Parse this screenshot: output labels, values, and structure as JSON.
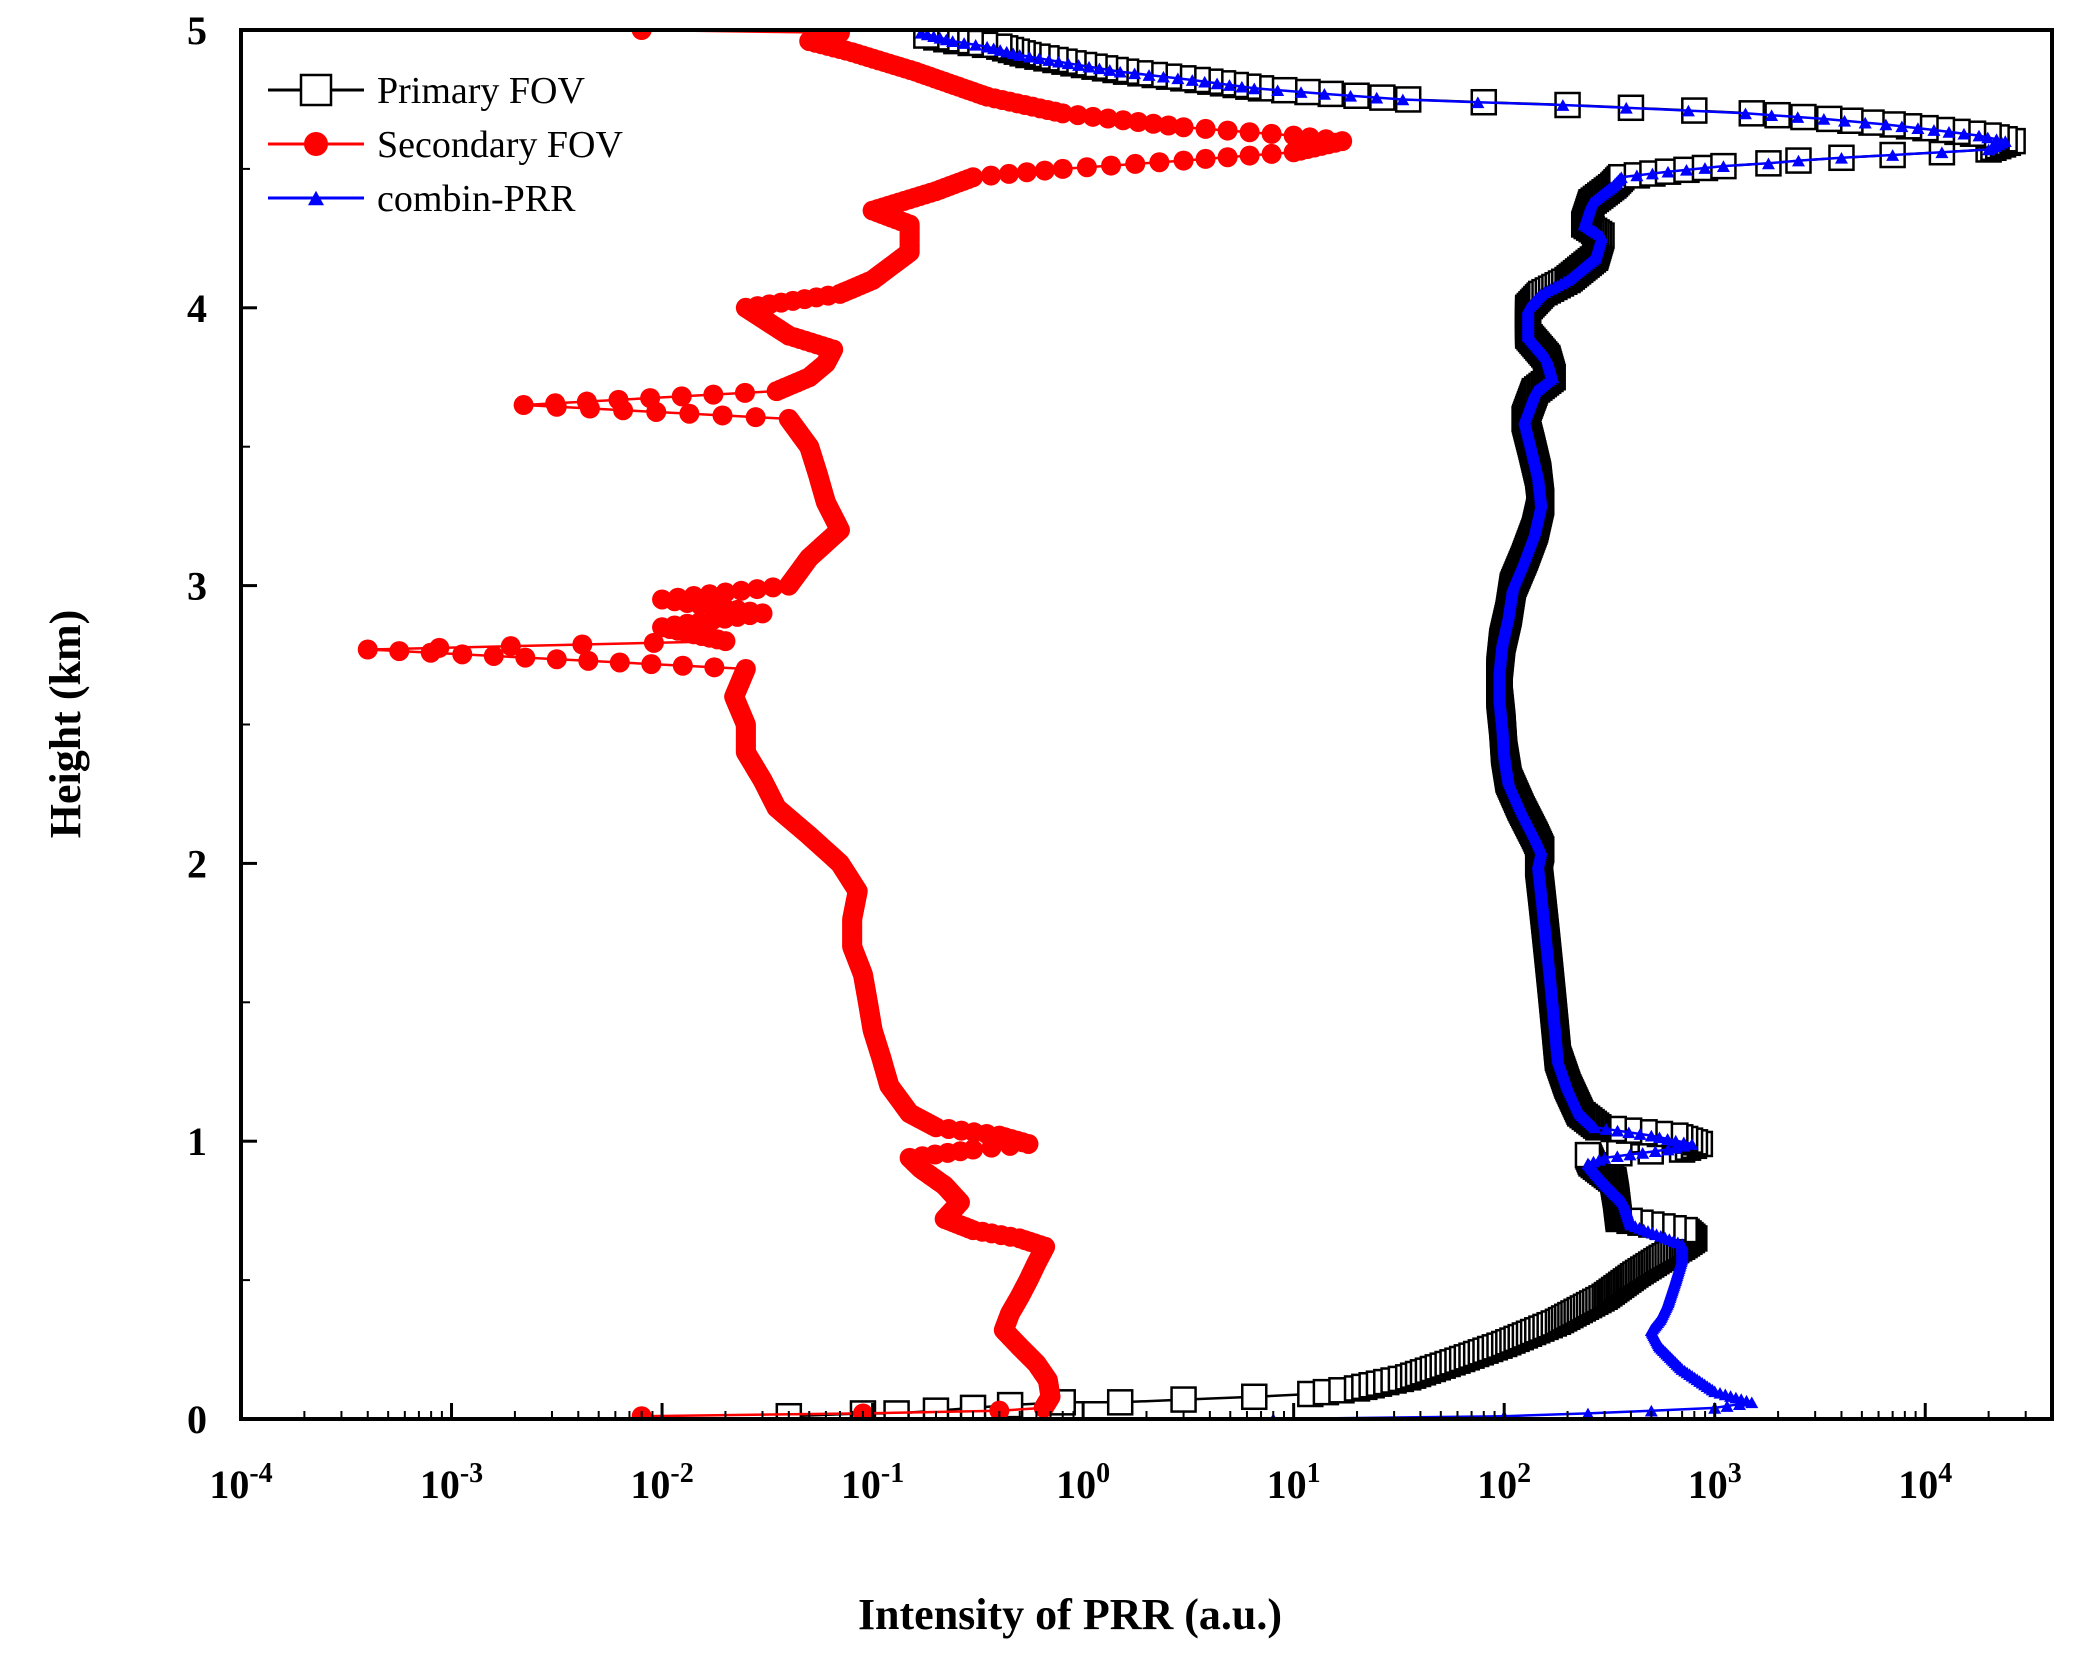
{
  "chart_data": {
    "type": "line",
    "title": "",
    "xlabel": "Intensity of PRR (a.u.)",
    "ylabel": "Height (km)",
    "x_scale": "log",
    "xlim": [
      0.0001,
      40000
    ],
    "ylim": [
      0,
      5
    ],
    "grid": false,
    "legend_position": "top-left",
    "x_ticks": [
      {
        "value": 0.0001,
        "base": "10",
        "exp": "-4"
      },
      {
        "value": 0.001,
        "base": "10",
        "exp": "-3"
      },
      {
        "value": 0.01,
        "base": "10",
        "exp": "-2"
      },
      {
        "value": 0.1,
        "base": "10",
        "exp": "-1"
      },
      {
        "value": 1,
        "base": "10",
        "exp": "0"
      },
      {
        "value": 10,
        "base": "10",
        "exp": "1"
      },
      {
        "value": 100,
        "base": "10",
        "exp": "2"
      },
      {
        "value": 1000,
        "base": "10",
        "exp": "3"
      },
      {
        "value": 10000,
        "base": "10",
        "exp": "4"
      }
    ],
    "y_ticks": [
      {
        "value": 0,
        "label": "0"
      },
      {
        "value": 1,
        "label": "1"
      },
      {
        "value": 2,
        "label": "2"
      },
      {
        "value": 3,
        "label": "3"
      },
      {
        "value": 4,
        "label": "4"
      },
      {
        "value": 5,
        "label": "5"
      }
    ],
    "series": [
      {
        "name": "Primary FOV",
        "color": "#000000",
        "marker": "open-square",
        "points": [
          [
            0.04,
            0.01
          ],
          [
            0.09,
            0.02
          ],
          [
            0.13,
            0.02
          ],
          [
            0.2,
            0.03
          ],
          [
            0.3,
            0.04
          ],
          [
            0.45,
            0.05
          ],
          [
            0.8,
            0.06
          ],
          [
            1.5,
            0.06
          ],
          [
            3,
            0.07
          ],
          [
            6.5,
            0.08
          ],
          [
            12,
            0.09
          ],
          [
            20,
            0.11
          ],
          [
            35,
            0.15
          ],
          [
            60,
            0.21
          ],
          [
            100,
            0.27
          ],
          [
            180,
            0.35
          ],
          [
            300,
            0.44
          ],
          [
            420,
            0.52
          ],
          [
            560,
            0.58
          ],
          [
            700,
            0.62
          ],
          [
            800,
            0.65
          ],
          [
            720,
            0.68
          ],
          [
            500,
            0.7
          ],
          [
            350,
            0.72
          ],
          [
            340,
            0.8
          ],
          [
            330,
            0.86
          ],
          [
            260,
            0.92
          ],
          [
            250,
            0.95
          ],
          [
            700,
            0.97
          ],
          [
            850,
            0.99
          ],
          [
            650,
            1.02
          ],
          [
            280,
            1.05
          ],
          [
            230,
            1.1
          ],
          [
            200,
            1.2
          ],
          [
            180,
            1.3
          ],
          [
            175,
            1.4
          ],
          [
            170,
            1.5
          ],
          [
            165,
            1.6
          ],
          [
            160,
            1.7
          ],
          [
            155,
            1.8
          ],
          [
            150,
            1.9
          ],
          [
            145,
            2.0
          ],
          [
            150,
            2.05
          ],
          [
            140,
            2.1
          ],
          [
            120,
            2.2
          ],
          [
            105,
            2.3
          ],
          [
            100,
            2.4
          ],
          [
            98,
            2.5
          ],
          [
            95,
            2.6
          ],
          [
            95,
            2.7
          ],
          [
            98,
            2.8
          ],
          [
            105,
            2.9
          ],
          [
            110,
            3.0
          ],
          [
            125,
            3.1
          ],
          [
            140,
            3.2
          ],
          [
            150,
            3.3
          ],
          [
            145,
            3.4
          ],
          [
            135,
            3.5
          ],
          [
            125,
            3.6
          ],
          [
            140,
            3.7
          ],
          [
            170,
            3.75
          ],
          [
            160,
            3.82
          ],
          [
            130,
            3.9
          ],
          [
            130,
            4.0
          ],
          [
            150,
            4.05
          ],
          [
            200,
            4.1
          ],
          [
            270,
            4.18
          ],
          [
            290,
            4.26
          ],
          [
            240,
            4.3
          ],
          [
            260,
            4.38
          ],
          [
            330,
            4.44
          ],
          [
            360,
            4.47
          ],
          [
            600,
            4.49
          ],
          [
            1100,
            4.51
          ],
          [
            1800,
            4.52
          ],
          [
            2500,
            4.53
          ],
          [
            4000,
            4.54
          ],
          [
            7000,
            4.55
          ],
          [
            12000,
            4.56
          ],
          [
            20000,
            4.57
          ],
          [
            26000,
            4.6
          ],
          [
            20000,
            4.62
          ],
          [
            12000,
            4.64
          ],
          [
            7000,
            4.66
          ],
          [
            3500,
            4.68
          ],
          [
            1500,
            4.7
          ],
          [
            800,
            4.71
          ],
          [
            400,
            4.72
          ],
          [
            200,
            4.73
          ],
          [
            80,
            4.74
          ],
          [
            35,
            4.75
          ],
          [
            15,
            4.77
          ],
          [
            7,
            4.79
          ],
          [
            3.5,
            4.82
          ],
          [
            1.6,
            4.85
          ],
          [
            0.9,
            4.88
          ],
          [
            0.55,
            4.91
          ],
          [
            0.4,
            4.94
          ],
          [
            0.25,
            4.96
          ],
          [
            0.18,
            4.98
          ]
        ]
      },
      {
        "name": "Secondary FOV",
        "color": "#ff0000",
        "marker": "filled-circle",
        "points": [
          [
            0.008,
            0.01
          ],
          [
            0.09,
            0.02
          ],
          [
            0.4,
            0.03
          ],
          [
            0.65,
            0.04
          ],
          [
            0.7,
            0.08
          ],
          [
            0.68,
            0.14
          ],
          [
            0.6,
            0.2
          ],
          [
            0.5,
            0.26
          ],
          [
            0.42,
            0.32
          ],
          [
            0.45,
            0.38
          ],
          [
            0.5,
            0.44
          ],
          [
            0.55,
            0.5
          ],
          [
            0.6,
            0.56
          ],
          [
            0.66,
            0.62
          ],
          [
            0.5,
            0.65
          ],
          [
            0.3,
            0.68
          ],
          [
            0.22,
            0.72
          ],
          [
            0.26,
            0.78
          ],
          [
            0.22,
            0.84
          ],
          [
            0.17,
            0.9
          ],
          [
            0.15,
            0.94
          ],
          [
            0.3,
            0.97
          ],
          [
            0.55,
            0.99
          ],
          [
            0.4,
            1.02
          ],
          [
            0.2,
            1.05
          ],
          [
            0.15,
            1.1
          ],
          [
            0.12,
            1.2
          ],
          [
            0.11,
            1.3
          ],
          [
            0.1,
            1.4
          ],
          [
            0.095,
            1.5
          ],
          [
            0.09,
            1.6
          ],
          [
            0.08,
            1.7
          ],
          [
            0.08,
            1.8
          ],
          [
            0.085,
            1.9
          ],
          [
            0.07,
            2.0
          ],
          [
            0.05,
            2.1
          ],
          [
            0.035,
            2.2
          ],
          [
            0.03,
            2.3
          ],
          [
            0.025,
            2.4
          ],
          [
            0.025,
            2.5
          ],
          [
            0.022,
            2.6
          ],
          [
            0.025,
            2.7
          ],
          [
            0.0004,
            2.77
          ],
          [
            0.02,
            2.8
          ],
          [
            0.01,
            2.85
          ],
          [
            0.03,
            2.9
          ],
          [
            0.01,
            2.95
          ],
          [
            0.04,
            3.0
          ],
          [
            0.05,
            3.1
          ],
          [
            0.07,
            3.2
          ],
          [
            0.06,
            3.3
          ],
          [
            0.055,
            3.4
          ],
          [
            0.05,
            3.5
          ],
          [
            0.04,
            3.6
          ],
          [
            0.0022,
            3.65
          ],
          [
            0.035,
            3.7
          ],
          [
            0.05,
            3.75
          ],
          [
            0.06,
            3.8
          ],
          [
            0.065,
            3.85
          ],
          [
            0.04,
            3.9
          ],
          [
            0.025,
            4.0
          ],
          [
            0.07,
            4.05
          ],
          [
            0.1,
            4.1
          ],
          [
            0.15,
            4.2
          ],
          [
            0.15,
            4.3
          ],
          [
            0.1,
            4.35
          ],
          [
            0.2,
            4.42
          ],
          [
            0.3,
            4.47
          ],
          [
            0.8,
            4.5
          ],
          [
            3,
            4.53
          ],
          [
            10,
            4.56
          ],
          [
            17,
            4.6
          ],
          [
            10,
            4.62
          ],
          [
            3,
            4.65
          ],
          [
            0.8,
            4.7
          ],
          [
            0.35,
            4.76
          ],
          [
            0.16,
            4.85
          ],
          [
            0.08,
            4.92
          ],
          [
            0.05,
            4.96
          ],
          [
            0.07,
            4.99
          ],
          [
            0.008,
            5.0
          ]
        ]
      },
      {
        "name": "combin-PRR",
        "color": "#0000ff",
        "marker": "filled-triangle",
        "points": [
          [
            8,
            0.0
          ],
          [
            100,
            0.01
          ],
          [
            250,
            0.02
          ],
          [
            500,
            0.03
          ],
          [
            1000,
            0.04
          ],
          [
            1500,
            0.06
          ],
          [
            1000,
            0.1
          ],
          [
            700,
            0.18
          ],
          [
            550,
            0.26
          ],
          [
            500,
            0.32
          ],
          [
            550,
            0.36
          ],
          [
            600,
            0.42
          ],
          [
            650,
            0.5
          ],
          [
            700,
            0.58
          ],
          [
            700,
            0.63
          ],
          [
            400,
            0.7
          ],
          [
            370,
            0.78
          ],
          [
            300,
            0.85
          ],
          [
            250,
            0.92
          ],
          [
            300,
            0.94
          ],
          [
            600,
            0.97
          ],
          [
            780,
            0.99
          ],
          [
            500,
            1.02
          ],
          [
            270,
            1.05
          ],
          [
            230,
            1.1
          ],
          [
            200,
            1.2
          ],
          [
            180,
            1.3
          ],
          [
            175,
            1.4
          ],
          [
            170,
            1.5
          ],
          [
            165,
            1.6
          ],
          [
            160,
            1.7
          ],
          [
            155,
            1.8
          ],
          [
            150,
            1.9
          ],
          [
            145,
            2.0
          ],
          [
            150,
            2.05
          ],
          [
            140,
            2.1
          ],
          [
            120,
            2.2
          ],
          [
            105,
            2.3
          ],
          [
            100,
            2.4
          ],
          [
            98,
            2.5
          ],
          [
            95,
            2.6
          ],
          [
            95,
            2.7
          ],
          [
            98,
            2.8
          ],
          [
            105,
            2.9
          ],
          [
            110,
            3.0
          ],
          [
            125,
            3.1
          ],
          [
            140,
            3.2
          ],
          [
            150,
            3.3
          ],
          [
            145,
            3.4
          ],
          [
            135,
            3.5
          ],
          [
            125,
            3.6
          ],
          [
            140,
            3.7
          ],
          [
            170,
            3.75
          ],
          [
            160,
            3.82
          ],
          [
            130,
            3.9
          ],
          [
            130,
            4.0
          ],
          [
            150,
            4.05
          ],
          [
            200,
            4.1
          ],
          [
            270,
            4.18
          ],
          [
            290,
            4.26
          ],
          [
            240,
            4.3
          ],
          [
            260,
            4.38
          ],
          [
            330,
            4.44
          ],
          [
            360,
            4.47
          ],
          [
            600,
            4.49
          ],
          [
            1100,
            4.51
          ],
          [
            1800,
            4.52
          ],
          [
            2500,
            4.53
          ],
          [
            4000,
            4.54
          ],
          [
            7000,
            4.55
          ],
          [
            12000,
            4.56
          ],
          [
            20000,
            4.57
          ],
          [
            24000,
            4.6
          ],
          [
            18000,
            4.62
          ],
          [
            11000,
            4.64
          ],
          [
            6500,
            4.66
          ],
          [
            3300,
            4.68
          ],
          [
            1400,
            4.7
          ],
          [
            750,
            4.71
          ],
          [
            380,
            4.72
          ],
          [
            190,
            4.73
          ],
          [
            75,
            4.74
          ],
          [
            33,
            4.75
          ],
          [
            14,
            4.77
          ],
          [
            6.5,
            4.79
          ],
          [
            3.3,
            4.82
          ],
          [
            1.5,
            4.85
          ],
          [
            0.85,
            4.88
          ],
          [
            0.5,
            4.91
          ],
          [
            0.35,
            4.94
          ],
          [
            0.24,
            4.96
          ],
          [
            0.17,
            4.99
          ]
        ]
      }
    ]
  }
}
